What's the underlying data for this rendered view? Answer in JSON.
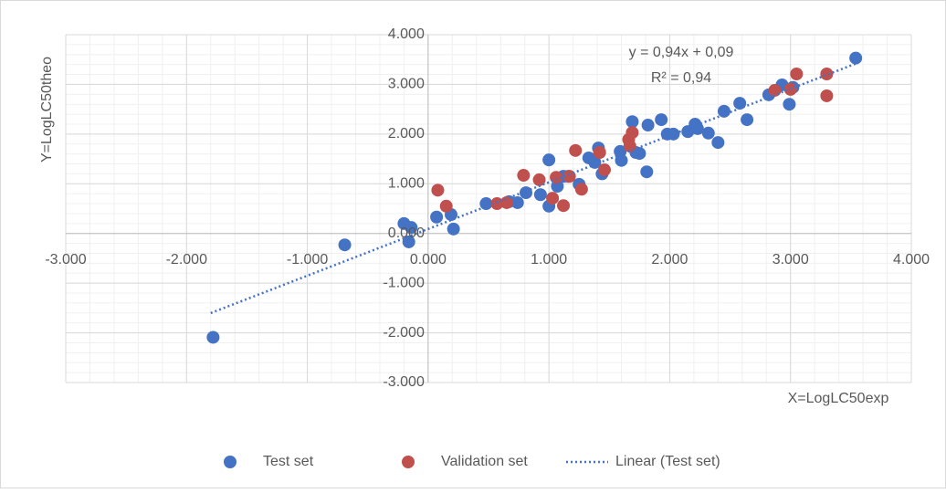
{
  "chart_data": {
    "type": "scatter",
    "x_label": "X=LogLC50exp",
    "y_label": "Y=LogLC50theo",
    "annotations": [
      "y = 0,94x + 0,09",
      "R² = 0,94"
    ],
    "xlim": [
      -3,
      4
    ],
    "ylim": [
      -3,
      4
    ],
    "xticks": [
      {
        "value": -3,
        "label": "-3.000"
      },
      {
        "value": -2,
        "label": "-2.000"
      },
      {
        "value": -1,
        "label": "-1.000"
      },
      {
        "value": 0,
        "label": "0.000"
      },
      {
        "value": 1,
        "label": "1.000"
      },
      {
        "value": 2,
        "label": "2.000"
      },
      {
        "value": 3,
        "label": "3.000"
      },
      {
        "value": 4,
        "label": "4.000"
      }
    ],
    "yticks": [
      {
        "value": -3,
        "label": "-3.000"
      },
      {
        "value": -2,
        "label": "-2.000"
      },
      {
        "value": -1,
        "label": "-1.000"
      },
      {
        "value": 0,
        "label": "0.000"
      },
      {
        "value": 1,
        "label": "1.000"
      },
      {
        "value": 2,
        "label": "2.000"
      },
      {
        "value": 3,
        "label": "3.000"
      },
      {
        "value": 4,
        "label": "4.000"
      }
    ],
    "grid": true,
    "minor_grid_step": 0.2,
    "legend": "bottom",
    "series": [
      {
        "name": "Test set",
        "color": "#4472c4",
        "x": [
          -0.69,
          -1.78,
          -0.2,
          -0.14,
          -0.16,
          0.07,
          0.19,
          0.21,
          0.48,
          0.67,
          0.74,
          0.81,
          0.93,
          1.0,
          1.0,
          1.07,
          1.12,
          1.16,
          1.25,
          1.33,
          1.38,
          1.41,
          1.44,
          1.59,
          1.6,
          1.69,
          1.72,
          1.75,
          1.81,
          1.82,
          1.93,
          1.98,
          2.03,
          2.15,
          2.21,
          2.23,
          2.32,
          2.4,
          2.45,
          2.58,
          2.64,
          2.82,
          2.93,
          2.99,
          3.02,
          3.54
        ],
        "values": [
          -0.23,
          -2.09,
          0.2,
          0.12,
          -0.17,
          0.33,
          0.38,
          0.09,
          0.6,
          0.64,
          0.62,
          0.82,
          0.78,
          0.55,
          1.48,
          0.95,
          1.15,
          1.15,
          0.99,
          1.52,
          1.43,
          1.72,
          1.2,
          1.65,
          1.47,
          2.25,
          1.63,
          1.61,
          1.24,
          2.18,
          2.29,
          2.0,
          2.0,
          2.05,
          2.2,
          2.11,
          2.02,
          1.83,
          2.46,
          2.62,
          2.29,
          2.79,
          2.99,
          2.6,
          2.94,
          3.53
        ]
      },
      {
        "name": "Validation set",
        "color": "#c0504d",
        "x": [
          0.08,
          0.15,
          0.57,
          0.65,
          0.79,
          0.92,
          1.03,
          1.06,
          1.12,
          1.17,
          1.22,
          1.27,
          1.42,
          1.46,
          1.66,
          1.67,
          1.69,
          2.87,
          3.0,
          3.05,
          3.3,
          3.3
        ],
        "values": [
          0.87,
          0.55,
          0.6,
          0.62,
          1.17,
          1.08,
          0.71,
          1.13,
          0.56,
          1.15,
          1.67,
          0.89,
          1.63,
          1.28,
          1.89,
          1.76,
          2.03,
          2.88,
          2.9,
          3.21,
          3.21,
          2.77
        ]
      }
    ],
    "trendline": {
      "name": "Linear (Test set)",
      "color": "#4472c4",
      "x": [
        -1.8,
        3.55
      ],
      "values": [
        -1.602,
        3.427
      ]
    }
  }
}
